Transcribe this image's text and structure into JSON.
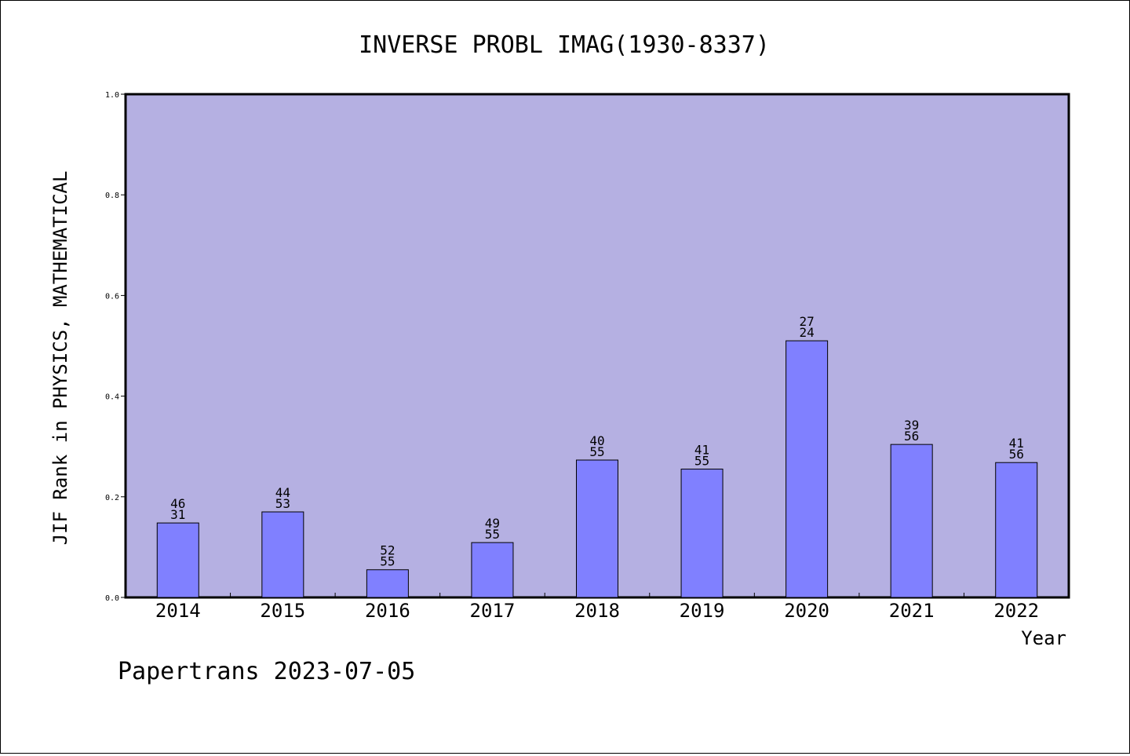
{
  "chart_data": {
    "type": "bar",
    "title": "INVERSE PROBL IMAG(1930-8337)",
    "xlabel": "Year",
    "ylabel": "JIF Rank in PHYSICS, MATHEMATICAL",
    "categories": [
      "2014",
      "2015",
      "2016",
      "2017",
      "2018",
      "2019",
      "2020",
      "2021",
      "2022"
    ],
    "values": [
      0.148,
      0.17,
      0.055,
      0.109,
      0.273,
      0.255,
      0.51,
      0.304,
      0.268
    ],
    "rank_top": [
      "46",
      "44",
      "52",
      "49",
      "40",
      "41",
      "27",
      "39",
      "41"
    ],
    "rank_bottom": [
      "31",
      "53",
      "55",
      "55",
      "55",
      "55",
      "24",
      "56",
      "56"
    ],
    "ylim": [
      0.0,
      1.0
    ],
    "yticks": [
      "0.0",
      "0.2",
      "0.4",
      "0.6",
      "0.8",
      "1.0"
    ],
    "grid": false,
    "colors": {
      "plot_bg": "#b5b0e2",
      "bar": "#8080ff"
    }
  },
  "footer": "Papertrans 2023-07-05"
}
